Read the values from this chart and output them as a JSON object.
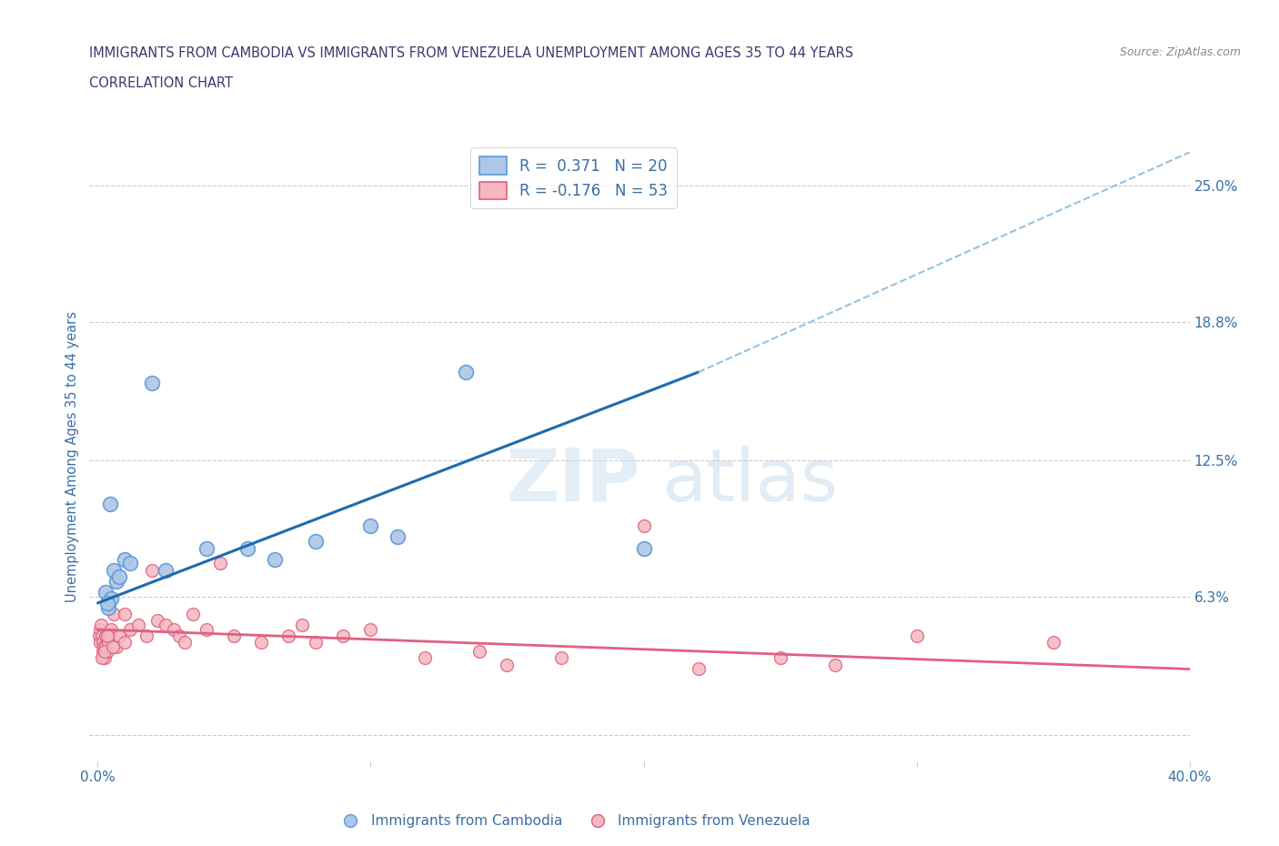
{
  "title_line1": "IMMIGRANTS FROM CAMBODIA VS IMMIGRANTS FROM VENEZUELA UNEMPLOYMENT AMONG AGES 35 TO 44 YEARS",
  "title_line2": "CORRELATION CHART",
  "source": "Source: ZipAtlas.com",
  "ylabel": "Unemployment Among Ages 35 to 44 years",
  "xlim": [
    0.0,
    40.0
  ],
  "ylim": [
    0.0,
    26.5
  ],
  "ylim_bottom_ext": -1.5,
  "yticks": [
    0.0,
    6.3,
    12.5,
    18.8,
    25.0
  ],
  "ytick_labels": [
    "",
    "6.3%",
    "12.5%",
    "18.8%",
    "25.0%"
  ],
  "xtick_positions": [
    0.0,
    10.0,
    20.0,
    30.0,
    40.0
  ],
  "xtick_labels": [
    "0.0%",
    "",
    "",
    "",
    "40.0%"
  ],
  "title_color": "#3a3a6e",
  "axis_color": "#3a6ea5",
  "cambodia_color": "#aec6e8",
  "cambodia_edge": "#5b9bd5",
  "venezuela_color": "#f4b8c1",
  "venezuela_edge": "#e06080",
  "regression_blue": "#1e6bb0",
  "regression_dashed": "#7ab3d9",
  "regression_pink": "#e06080",
  "legend_line1": "R =  0.371   N = 20",
  "legend_line2": "R = -0.176   N = 53",
  "blue_reg_x0": 0.0,
  "blue_reg_y0": 6.0,
  "blue_reg_x1": 22.0,
  "blue_reg_y1": 16.5,
  "blue_reg_dash_x1": 40.0,
  "blue_reg_dash_y1": 26.5,
  "pink_reg_x0": 0.0,
  "pink_reg_y0": 4.8,
  "pink_reg_x1": 40.0,
  "pink_reg_y1": 3.0,
  "cambodia_x": [
    0.3,
    0.4,
    0.5,
    0.6,
    0.7,
    0.8,
    1.0,
    1.2,
    2.5,
    4.0,
    5.5,
    6.5,
    8.0,
    10.0,
    11.0,
    13.5,
    2.0,
    0.35,
    20.0,
    0.45
  ],
  "cambodia_y": [
    6.5,
    5.8,
    6.2,
    7.5,
    7.0,
    7.2,
    8.0,
    7.8,
    7.5,
    8.5,
    8.5,
    8.0,
    8.8,
    9.5,
    9.0,
    16.5,
    16.0,
    6.0,
    8.5,
    10.5
  ],
  "venezuela_x": [
    0.05,
    0.08,
    0.1,
    0.12,
    0.15,
    0.18,
    0.2,
    0.22,
    0.25,
    0.28,
    0.3,
    0.35,
    0.4,
    0.45,
    0.5,
    0.6,
    0.7,
    0.8,
    1.0,
    1.0,
    1.2,
    1.5,
    1.8,
    2.0,
    2.2,
    2.5,
    2.8,
    3.0,
    3.2,
    3.5,
    4.0,
    4.5,
    5.0,
    6.0,
    7.0,
    7.5,
    8.0,
    9.0,
    10.0,
    12.0,
    14.0,
    15.0,
    17.0,
    20.0,
    22.0,
    25.0,
    27.0,
    30.0,
    35.0,
    0.15,
    0.25,
    0.35,
    0.55
  ],
  "venezuela_y": [
    4.5,
    4.2,
    4.8,
    5.0,
    4.5,
    4.2,
    3.8,
    4.0,
    3.5,
    4.0,
    4.5,
    3.8,
    4.2,
    4.5,
    4.8,
    5.5,
    4.0,
    4.5,
    5.5,
    4.2,
    4.8,
    5.0,
    4.5,
    7.5,
    5.2,
    5.0,
    4.8,
    4.5,
    4.2,
    5.5,
    4.8,
    7.8,
    4.5,
    4.2,
    4.5,
    5.0,
    4.2,
    4.5,
    4.8,
    3.5,
    3.8,
    3.2,
    3.5,
    9.5,
    3.0,
    3.5,
    3.2,
    4.5,
    4.2,
    3.5,
    3.8,
    4.5,
    4.0
  ]
}
